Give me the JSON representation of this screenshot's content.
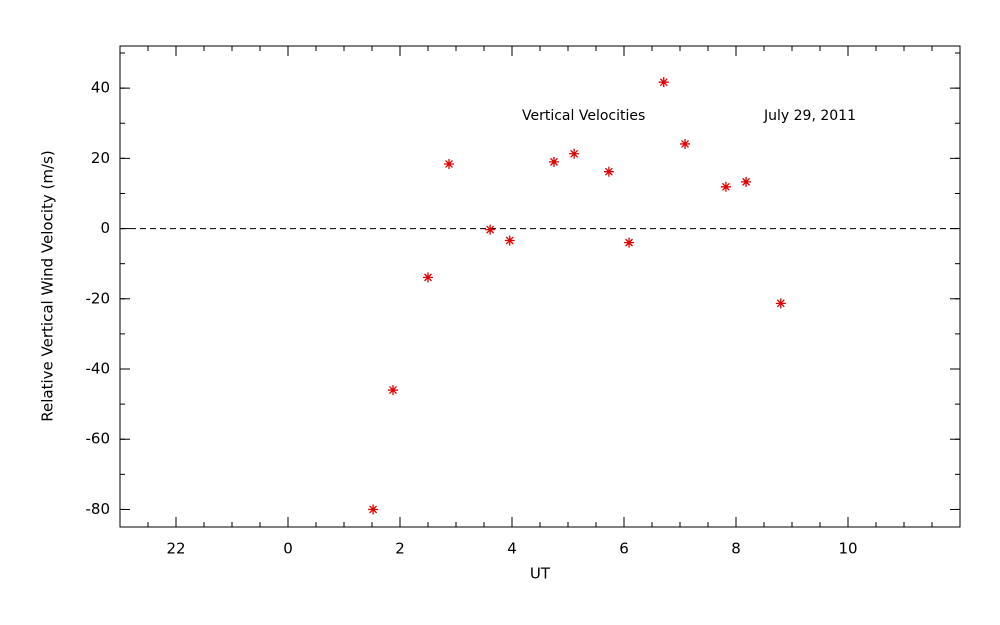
{
  "chart_data": {
    "type": "scatter",
    "x_label": "UT",
    "y_label": "Relative Vertical Wind Velocity (m/s)",
    "annotations": [
      "Vertical Velocities",
      "July 29, 2011"
    ],
    "series": [
      {
        "name": "Vertical Velocities",
        "color": "#e00000",
        "x": [
          1.52,
          1.875,
          2.5,
          2.875,
          3.61,
          3.96,
          4.75,
          5.11,
          5.73,
          6.09,
          6.71,
          7.09,
          7.82,
          8.18,
          8.8
        ],
        "values": [
          -80,
          -46,
          -13.9,
          18.4,
          -0.3,
          -3.4,
          19,
          21.3,
          16.2,
          -4,
          41.7,
          24.1,
          11.9,
          13.3,
          -21.3
        ]
      }
    ],
    "xlim": [
      -3,
      12
    ],
    "xticks": [
      {
        "value": -2,
        "label": "22"
      },
      0,
      2,
      4,
      6,
      8,
      10
    ],
    "ylim": [
      -85,
      52
    ],
    "yticks": [
      -80,
      -60,
      -40,
      -20,
      0,
      20,
      40
    ],
    "reference_line": 0
  }
}
